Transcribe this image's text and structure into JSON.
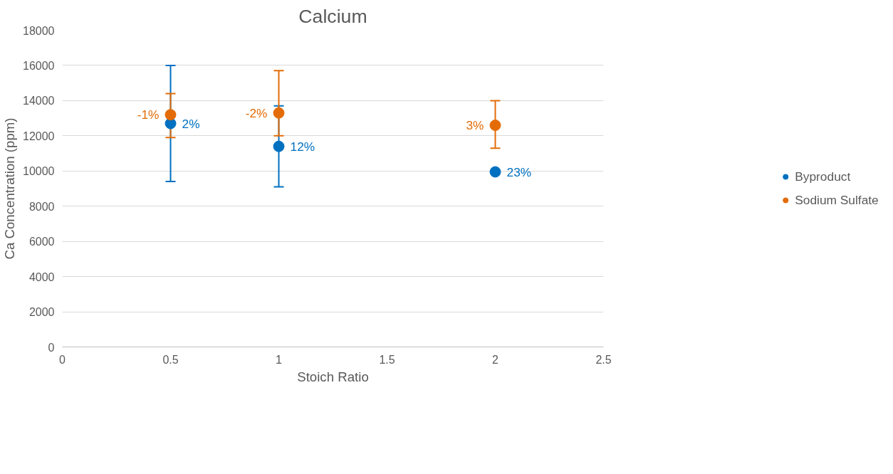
{
  "chart_data": {
    "type": "scatter",
    "title": "Calcium",
    "xlabel": "Stoich Ratio",
    "ylabel": "Ca Concentration (ppm)",
    "xlim": [
      0,
      2.5
    ],
    "xticks": [
      0,
      0.5,
      1,
      1.5,
      2,
      2.5
    ],
    "ylim": [
      0,
      18000
    ],
    "yticks": [
      0,
      2000,
      4000,
      6000,
      8000,
      10000,
      12000,
      14000,
      16000,
      18000
    ],
    "grid": "y",
    "legend": "right",
    "marker": "circle",
    "series": [
      {
        "name": "Byproduct",
        "color": "#0070c0",
        "x": [
          0.5,
          1,
          2
        ],
        "values": [
          12700,
          11400,
          9950
        ],
        "errors": [
          [
            9400,
            16000
          ],
          [
            9100,
            13700
          ],
          null
        ]
      },
      {
        "name": "Sodium Sulfate",
        "color": "#e36c09",
        "x": [
          0.5,
          1,
          2
        ],
        "values": [
          13200,
          13300,
          12600
        ],
        "errors": [
          [
            11900,
            14400
          ],
          [
            12000,
            15700
          ],
          [
            11300,
            14000
          ]
        ]
      }
    ],
    "annotations": [
      {
        "text": "2%",
        "x": 0.5,
        "y": 12700
      },
      {
        "text": "12%",
        "x": 1,
        "y": 11400
      },
      {
        "text": "23%",
        "x": 2,
        "y": 9950
      },
      {
        "text": "-1%",
        "x": 0.5,
        "y": 13200
      },
      {
        "text": "-2%",
        "x": 1,
        "y": 13300
      },
      {
        "text": "3%",
        "x": 2,
        "y": 12600
      }
    ]
  }
}
